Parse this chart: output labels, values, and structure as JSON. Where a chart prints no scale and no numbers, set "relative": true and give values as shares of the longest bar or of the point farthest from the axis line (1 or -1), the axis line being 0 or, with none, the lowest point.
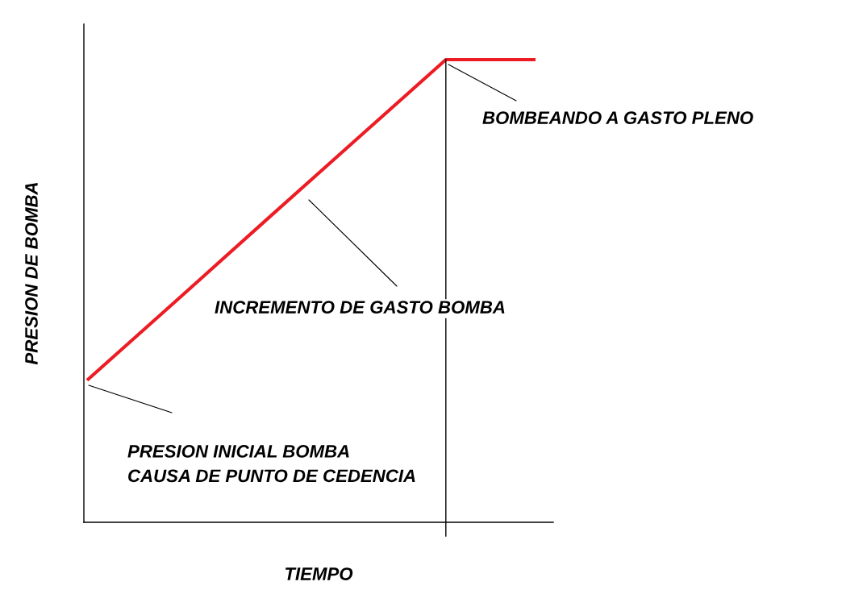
{
  "chart_data": {
    "type": "line",
    "relative": true,
    "xlabel": "TIEMPO",
    "ylabel": "PRESION DE BOMBA",
    "categories": [
      null,
      null,
      null,
      null,
      null,
      null
    ],
    "series": [
      {
        "color": "#ed1c24",
        "values": [
          0.307,
          0.48,
          0.654,
          0.827,
          1,
          1
        ]
      }
    ],
    "annotations": [
      "BOMBEANDO A GASTO PLENO",
      "INCREMENTO DE GASTO BOMBA",
      "PRESION INICIAL BOMBA\nCAUSA DE PUNTO DE CEDENCIA"
    ],
    "marker": "none",
    "line_style": "solid"
  }
}
